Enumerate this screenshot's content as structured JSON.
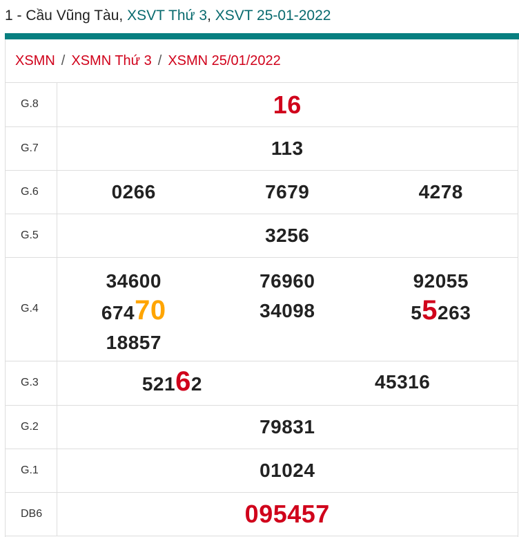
{
  "title": {
    "prefix": "1 - Cầu Vũng Tàu, ",
    "link1": "XSVT Thứ 3",
    "comma": ", ",
    "link2": "XSVT 25-01-2022"
  },
  "breadcrumb": [
    "XSMN",
    "XSMN Thứ 3",
    "XSMN 25/01/2022"
  ],
  "breadcrumb_sep": "/",
  "colors": {
    "accent": "#087f80",
    "link": "#d0021b",
    "highlight_orange": "#ffa500"
  },
  "prizes": [
    {
      "label": "G.8",
      "cols": [
        [
          {
            "p": "16",
            "h": "",
            "s": "",
            "style": "big"
          }
        ]
      ]
    },
    {
      "label": "G.7",
      "cols": [
        [
          {
            "p": "113",
            "h": "",
            "s": ""
          }
        ]
      ]
    },
    {
      "label": "G.6",
      "cols": [
        [
          {
            "p": "0266",
            "h": "",
            "s": ""
          }
        ],
        [
          {
            "p": "7679",
            "h": "",
            "s": ""
          }
        ],
        [
          {
            "p": "4278",
            "h": "",
            "s": ""
          }
        ]
      ]
    },
    {
      "label": "G.5",
      "cols": [
        [
          {
            "p": "3256",
            "h": "",
            "s": ""
          }
        ]
      ]
    },
    {
      "label": "G.4",
      "cols": [
        [
          {
            "p": "34600",
            "h": "",
            "s": ""
          },
          {
            "p": "674",
            "h": "70",
            "s": "",
            "hc": "org"
          },
          {
            "p": "18857",
            "h": "",
            "s": ""
          }
        ],
        [
          {
            "p": "76960",
            "h": "",
            "s": ""
          },
          {
            "p": "34098",
            "h": "",
            "s": ""
          }
        ],
        [
          {
            "p": "92055",
            "h": "",
            "s": ""
          },
          {
            "p": "5",
            "h": "5",
            "s": "263",
            "hc": "red"
          }
        ]
      ]
    },
    {
      "label": "G.3",
      "cols": [
        [
          {
            "p": "521",
            "h": "6",
            "s": "2",
            "hc": "red"
          }
        ],
        [
          {
            "p": "45316",
            "h": "",
            "s": ""
          }
        ]
      ]
    },
    {
      "label": "G.2",
      "cols": [
        [
          {
            "p": "79831",
            "h": "",
            "s": ""
          }
        ]
      ]
    },
    {
      "label": "G.1",
      "cols": [
        [
          {
            "p": "01024",
            "h": "",
            "s": ""
          }
        ]
      ]
    },
    {
      "label": "DB6",
      "cols": [
        [
          {
            "p": "095457",
            "h": "",
            "s": "",
            "style": "big"
          }
        ]
      ]
    }
  ]
}
